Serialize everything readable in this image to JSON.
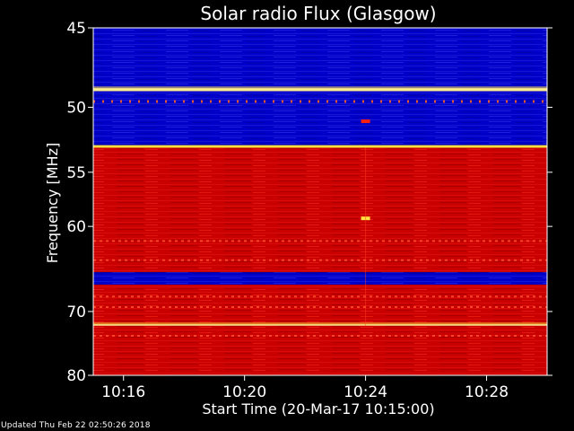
{
  "chart_data": {
    "type": "heatmap",
    "title": "Solar radio Flux (Glasgow)",
    "xlabel": "Start Time (20-Mar-17 10:15:00)",
    "ylabel": "Frequency [MHz]",
    "x_ticks": [
      "10:16",
      "10:20",
      "10:24",
      "10:28"
    ],
    "x_tick_minutes": [
      1,
      5,
      9,
      13
    ],
    "xlim_minutes": [
      0,
      15
    ],
    "y_ticks": [
      45,
      50,
      55,
      60,
      70,
      80
    ],
    "y_scale": "reciprocal",
    "ylim": [
      45,
      80
    ],
    "colormap": "blue-red-yellow",
    "colors": {
      "background": "#000000",
      "blue_low": "#0000c8",
      "red_mid": "#c80000",
      "yellow_high": "#ffe040",
      "white_peak": "#fffff0"
    },
    "bands": [
      {
        "f_from": 45,
        "f_to": 48.7,
        "level": "blue"
      },
      {
        "f_from": 48.7,
        "f_to": 48.9,
        "level": "peak"
      },
      {
        "f_from": 48.9,
        "f_to": 52.8,
        "level": "blue"
      },
      {
        "f_from": 52.8,
        "f_to": 53.0,
        "level": "high"
      },
      {
        "f_from": 53.0,
        "f_to": 65.0,
        "level": "red"
      },
      {
        "f_from": 65.0,
        "f_to": 66.5,
        "level": "blue"
      },
      {
        "f_from": 66.5,
        "f_to": 71.8,
        "level": "red"
      },
      {
        "f_from": 71.8,
        "f_to": 72.0,
        "level": "peak"
      },
      {
        "f_from": 72.0,
        "f_to": 80,
        "level": "red"
      }
    ],
    "events": [
      {
        "time_minutes": 9.0,
        "frequency": 59.2,
        "level": "high"
      },
      {
        "time_minutes": 9.0,
        "frequency": 51.0,
        "level": "red"
      }
    ]
  },
  "footer": {
    "updated": "Updated Thu Feb 22 02:50:26 2018"
  }
}
